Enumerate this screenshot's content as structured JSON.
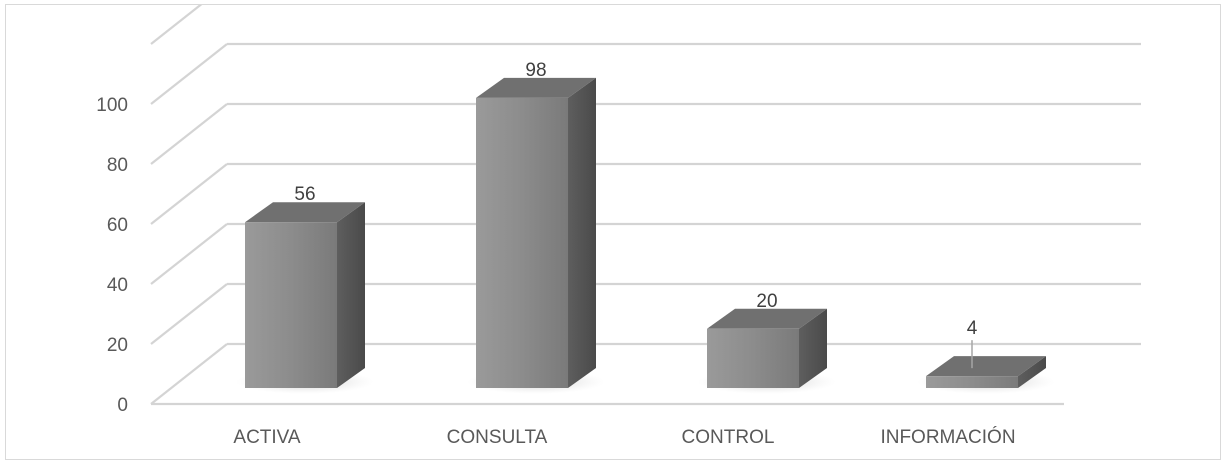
{
  "chart_data": {
    "type": "bar",
    "categories": [
      "ACTIVA",
      "CONSULTA",
      "CONTROL",
      "INFORMACIÓN"
    ],
    "values": [
      56,
      98,
      20,
      4
    ],
    "title": "",
    "xlabel": "",
    "ylabel": "",
    "ylim": [
      0,
      100
    ],
    "yticks": [
      "0",
      "20",
      "40",
      "60",
      "80",
      "100"
    ],
    "data_labels": [
      "56",
      "98",
      "20",
      "4"
    ],
    "grid": true,
    "legend": "none",
    "three_d": true,
    "colors": {
      "bar_front": "#8a8a8a",
      "bar_side": "#5a5a5a",
      "bar_top": "#707070",
      "gridline": "#d4d4d4",
      "shadow": "#cfcfcf"
    }
  }
}
